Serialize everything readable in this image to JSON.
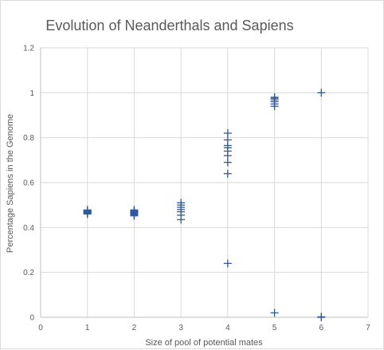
{
  "chart_data": {
    "type": "scatter",
    "title": "Evolution of Neanderthals and Sapiens",
    "xlabel": "Size of pool of potential mates",
    "ylabel": "Percentage Sapiens in the Genome",
    "xlim": [
      0,
      7
    ],
    "ylim": [
      0,
      1.2
    ],
    "x_ticks": [
      "0",
      "1",
      "2",
      "3",
      "4",
      "5",
      "6",
      "7"
    ],
    "y_ticks": [
      "0",
      "0.2",
      "0.4",
      "0.6",
      "0.8",
      "1",
      "1.2"
    ],
    "grid": "vertical and horizontal",
    "marker": "plus",
    "marker_color": "#2e5a9c",
    "series": [
      {
        "points": [
          {
            "x": 1,
            "y": 0.46
          },
          {
            "x": 1,
            "y": 0.463
          },
          {
            "x": 1,
            "y": 0.466
          },
          {
            "x": 1,
            "y": 0.468
          },
          {
            "x": 1,
            "y": 0.47
          },
          {
            "x": 1,
            "y": 0.472
          },
          {
            "x": 1,
            "y": 0.474
          },
          {
            "x": 1,
            "y": 0.476
          },
          {
            "x": 1,
            "y": 0.478
          },
          {
            "x": 2,
            "y": 0.452
          },
          {
            "x": 2,
            "y": 0.456
          },
          {
            "x": 2,
            "y": 0.46
          },
          {
            "x": 2,
            "y": 0.463
          },
          {
            "x": 2,
            "y": 0.466
          },
          {
            "x": 2,
            "y": 0.469
          },
          {
            "x": 2,
            "y": 0.472
          },
          {
            "x": 2,
            "y": 0.475
          },
          {
            "x": 2,
            "y": 0.478
          },
          {
            "x": 3,
            "y": 0.435
          },
          {
            "x": 3,
            "y": 0.455
          },
          {
            "x": 3,
            "y": 0.47
          },
          {
            "x": 3,
            "y": 0.48
          },
          {
            "x": 3,
            "y": 0.49
          },
          {
            "x": 3,
            "y": 0.5
          },
          {
            "x": 3,
            "y": 0.51
          },
          {
            "x": 4,
            "y": 0.24
          },
          {
            "x": 4,
            "y": 0.64
          },
          {
            "x": 4,
            "y": 0.69
          },
          {
            "x": 4,
            "y": 0.72
          },
          {
            "x": 4,
            "y": 0.74
          },
          {
            "x": 4,
            "y": 0.755
          },
          {
            "x": 4,
            "y": 0.765
          },
          {
            "x": 4,
            "y": 0.79
          },
          {
            "x": 4,
            "y": 0.82
          },
          {
            "x": 5,
            "y": 0.02
          },
          {
            "x": 5,
            "y": 0.94
          },
          {
            "x": 5,
            "y": 0.95
          },
          {
            "x": 5,
            "y": 0.96
          },
          {
            "x": 5,
            "y": 0.968
          },
          {
            "x": 5,
            "y": 0.975
          },
          {
            "x": 5,
            "y": 0.98
          },
          {
            "x": 6,
            "y": 0.0
          },
          {
            "x": 6,
            "y": 0.002
          },
          {
            "x": 6,
            "y": 1.0
          }
        ]
      }
    ]
  }
}
